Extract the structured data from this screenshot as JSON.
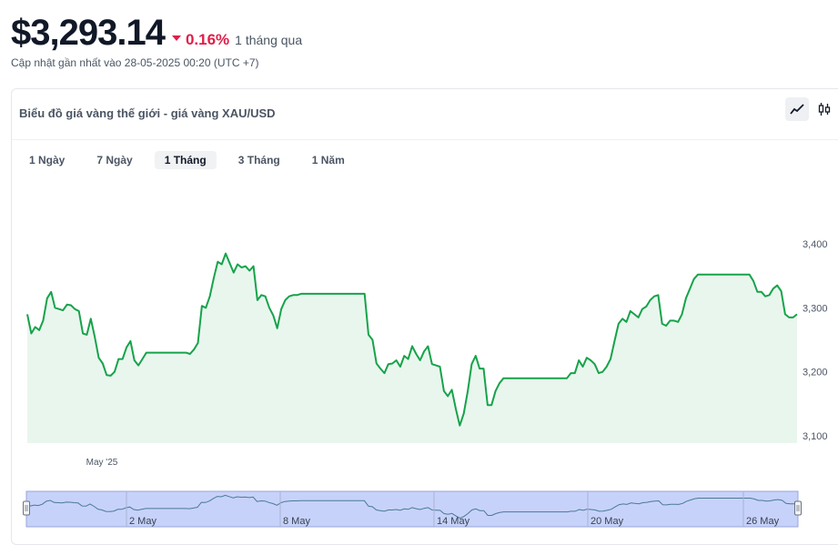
{
  "header": {
    "price": "$3,293.14",
    "change_pct": "0.16%",
    "period": "1 tháng qua",
    "updated": "Cập nhật gần nhất vào 28-05-2025 00:20 (UTC +7)"
  },
  "card": {
    "title": "Biểu đồ giá vàng thế giới - giá vàng XAU/USD",
    "view_buttons": [
      {
        "icon": "line-chart-icon",
        "active": true
      },
      {
        "icon": "candlestick-icon",
        "active": false
      }
    ]
  },
  "tabs": [
    {
      "label": "1 Ngày",
      "active": false
    },
    {
      "label": "7 Ngày",
      "active": false
    },
    {
      "label": "1 Tháng",
      "active": true
    },
    {
      "label": "3 Tháng",
      "active": false
    },
    {
      "label": "1 Năm",
      "active": false
    }
  ],
  "colors": {
    "line": "#16a34a",
    "area": "#e9f6ee",
    "negative": "#e11d48",
    "navigator_fill": "#c7d2fa",
    "navigator_line": "#4a7a96"
  },
  "chart_data": {
    "type": "line",
    "series": [
      {
        "values": [
          3290,
          3260,
          3270,
          3265,
          3280,
          3315,
          3325,
          3300,
          3298,
          3296,
          3305,
          3304,
          3298,
          3295,
          3260,
          3258,
          3283,
          3255,
          3222,
          3213,
          3195,
          3194,
          3200,
          3220,
          3220,
          3238,
          3248,
          3218,
          3210,
          3220,
          3230,
          3230,
          3230,
          3230,
          3230,
          3230,
          3230,
          3230,
          3230,
          3230,
          3230,
          3228,
          3235,
          3245,
          3303,
          3300,
          3318,
          3347,
          3372,
          3368,
          3385,
          3370,
          3355,
          3368,
          3363,
          3365,
          3358,
          3365,
          3312,
          3320,
          3318,
          3300,
          3288,
          3268,
          3298,
          3312,
          3318,
          3320,
          3320,
          3322,
          3322,
          3322,
          3322,
          3322,
          3322,
          3322,
          3322,
          3322,
          3322,
          3322,
          3322,
          3322,
          3322,
          3322,
          3322,
          3322,
          3258,
          3250,
          3213,
          3205,
          3198,
          3212,
          3213,
          3218,
          3208,
          3225,
          3220,
          3240,
          3228,
          3218,
          3232,
          3240,
          3212,
          3210,
          3208,
          3170,
          3162,
          3172,
          3142,
          3116,
          3135,
          3170,
          3212,
          3225,
          3205,
          3205,
          3148,
          3148,
          3170,
          3182,
          3190,
          3190,
          3190,
          3190,
          3190,
          3190,
          3190,
          3190,
          3190,
          3190,
          3190,
          3190,
          3190,
          3190,
          3190,
          3190,
          3190,
          3198,
          3198,
          3218,
          3208,
          3222,
          3218,
          3212,
          3198,
          3200,
          3208,
          3220,
          3248,
          3275,
          3283,
          3278,
          3295,
          3290,
          3285,
          3298,
          3302,
          3312,
          3318,
          3320,
          3275,
          3272,
          3280,
          3280,
          3278,
          3290,
          3315,
          3330,
          3345,
          3352,
          3352,
          3352,
          3352,
          3352,
          3352,
          3352,
          3352,
          3352,
          3352,
          3352,
          3352,
          3352,
          3352,
          3342,
          3325,
          3325,
          3318,
          3320,
          3330,
          3335,
          3326,
          3290,
          3285,
          3285,
          3290
        ]
      }
    ],
    "y_ticks": [
      "3,400",
      "3,300",
      "3,200",
      "3,100"
    ],
    "y_tick_values": [
      3400,
      3300,
      3200,
      3100
    ],
    "ylim": [
      3100,
      3400
    ],
    "x_label_main": "May '25",
    "navigator_labels": [
      "2 May",
      "8 May",
      "14 May",
      "20 May",
      "26 May"
    ],
    "grid": false
  }
}
